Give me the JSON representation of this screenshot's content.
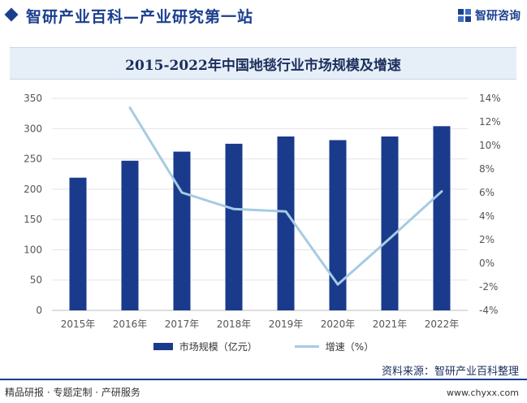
{
  "header": {
    "title": "智研产业百科—产业研究第一站",
    "brand_name": "智研咨询"
  },
  "chart_data": {
    "type": "bar",
    "title": "2015-2022年中国地毯行业市场规模及增速",
    "categories": [
      "2015年",
      "2016年",
      "2017年",
      "2018年",
      "2019年",
      "2020年",
      "2021年",
      "2022年"
    ],
    "series": [
      {
        "name": "市场规模（亿元）",
        "type": "bar",
        "axis": "left",
        "color": "#1a3a8c",
        "values": [
          219,
          247,
          262,
          275,
          287,
          281,
          287,
          304
        ]
      },
      {
        "name": "增速（%）",
        "type": "line",
        "axis": "right",
        "color": "#a6cbe3",
        "values": [
          null,
          13.2,
          6.0,
          4.6,
          4.4,
          -1.8,
          2.1,
          6.1
        ]
      }
    ],
    "y_left": {
      "min": 0,
      "max": 350,
      "ticks": [
        "0",
        "50",
        "100",
        "150",
        "200",
        "250",
        "300",
        "350"
      ]
    },
    "y_right": {
      "min": -4,
      "max": 14,
      "ticks": [
        "-4%",
        "-2%",
        "0%",
        "2%",
        "4%",
        "6%",
        "8%",
        "10%",
        "12%",
        "14%"
      ]
    },
    "grid": true,
    "legend_position": "bottom"
  },
  "footer": {
    "left_text": "精品研报 · 专题定制 · 产研服务",
    "source": "资料来源：智研产业百科整理",
    "url": "www.chyxx.com"
  }
}
